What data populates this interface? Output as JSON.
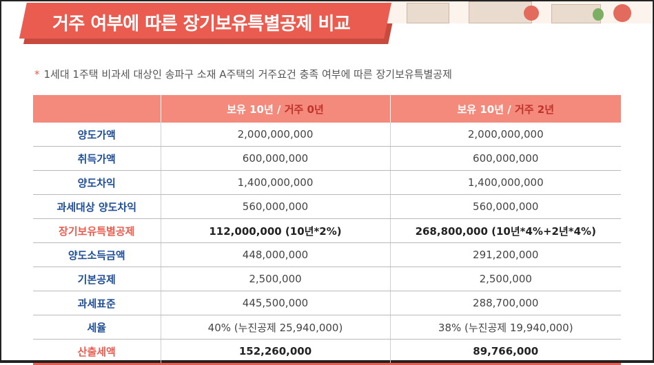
{
  "banner": {
    "title": "거주 여부에 따른 장기보유특별공제 비교"
  },
  "note": {
    "asterisk": "*",
    "text": "1세대 1주택 비과세 대상인 송파구 소재 A주택의 거주요건 충족 여부에 따른 장기보유특별공제"
  },
  "table": {
    "header": [
      {
        "hold": "보유 10년 /",
        "reside": "거주 0년"
      },
      {
        "hold": "보유 10년 /",
        "reside": "거주 2년"
      }
    ],
    "rows": [
      {
        "label": "양도가액",
        "a": "2,000,000,000",
        "b": "2,000,000,000"
      },
      {
        "label": "취득가액",
        "a": "600,000,000",
        "b": "600,000,000"
      },
      {
        "label": "양도차익",
        "a": "1,400,000,000",
        "b": "1,400,000,000"
      },
      {
        "label": "과세대상 양도차익",
        "a": "560,000,000",
        "b": "560,000,000"
      },
      {
        "label": "장기보유특별공제",
        "a": "112,000,000 (10년*2%)",
        "b": "268,800,000 (10년*4%+2년*4%)"
      },
      {
        "label": "양도소득금액",
        "a": "448,000,000",
        "b": "291,200,000"
      },
      {
        "label": "기본공제",
        "a": "2,500,000",
        "b": "2,500,000"
      },
      {
        "label": "과세표준",
        "a": "445,500,000",
        "b": "288,700,000"
      },
      {
        "label": "세율",
        "a": "40% (누진공제 25,940,000)",
        "b": "38% (누진공제 19,940,000)"
      },
      {
        "label": "산출세액",
        "a": "152,260,000",
        "b": "89,766,000"
      }
    ]
  },
  "colors": {
    "accent": "#e95c4f",
    "header_bg": "#f48a7c",
    "label_blue": "#1f4e96"
  }
}
